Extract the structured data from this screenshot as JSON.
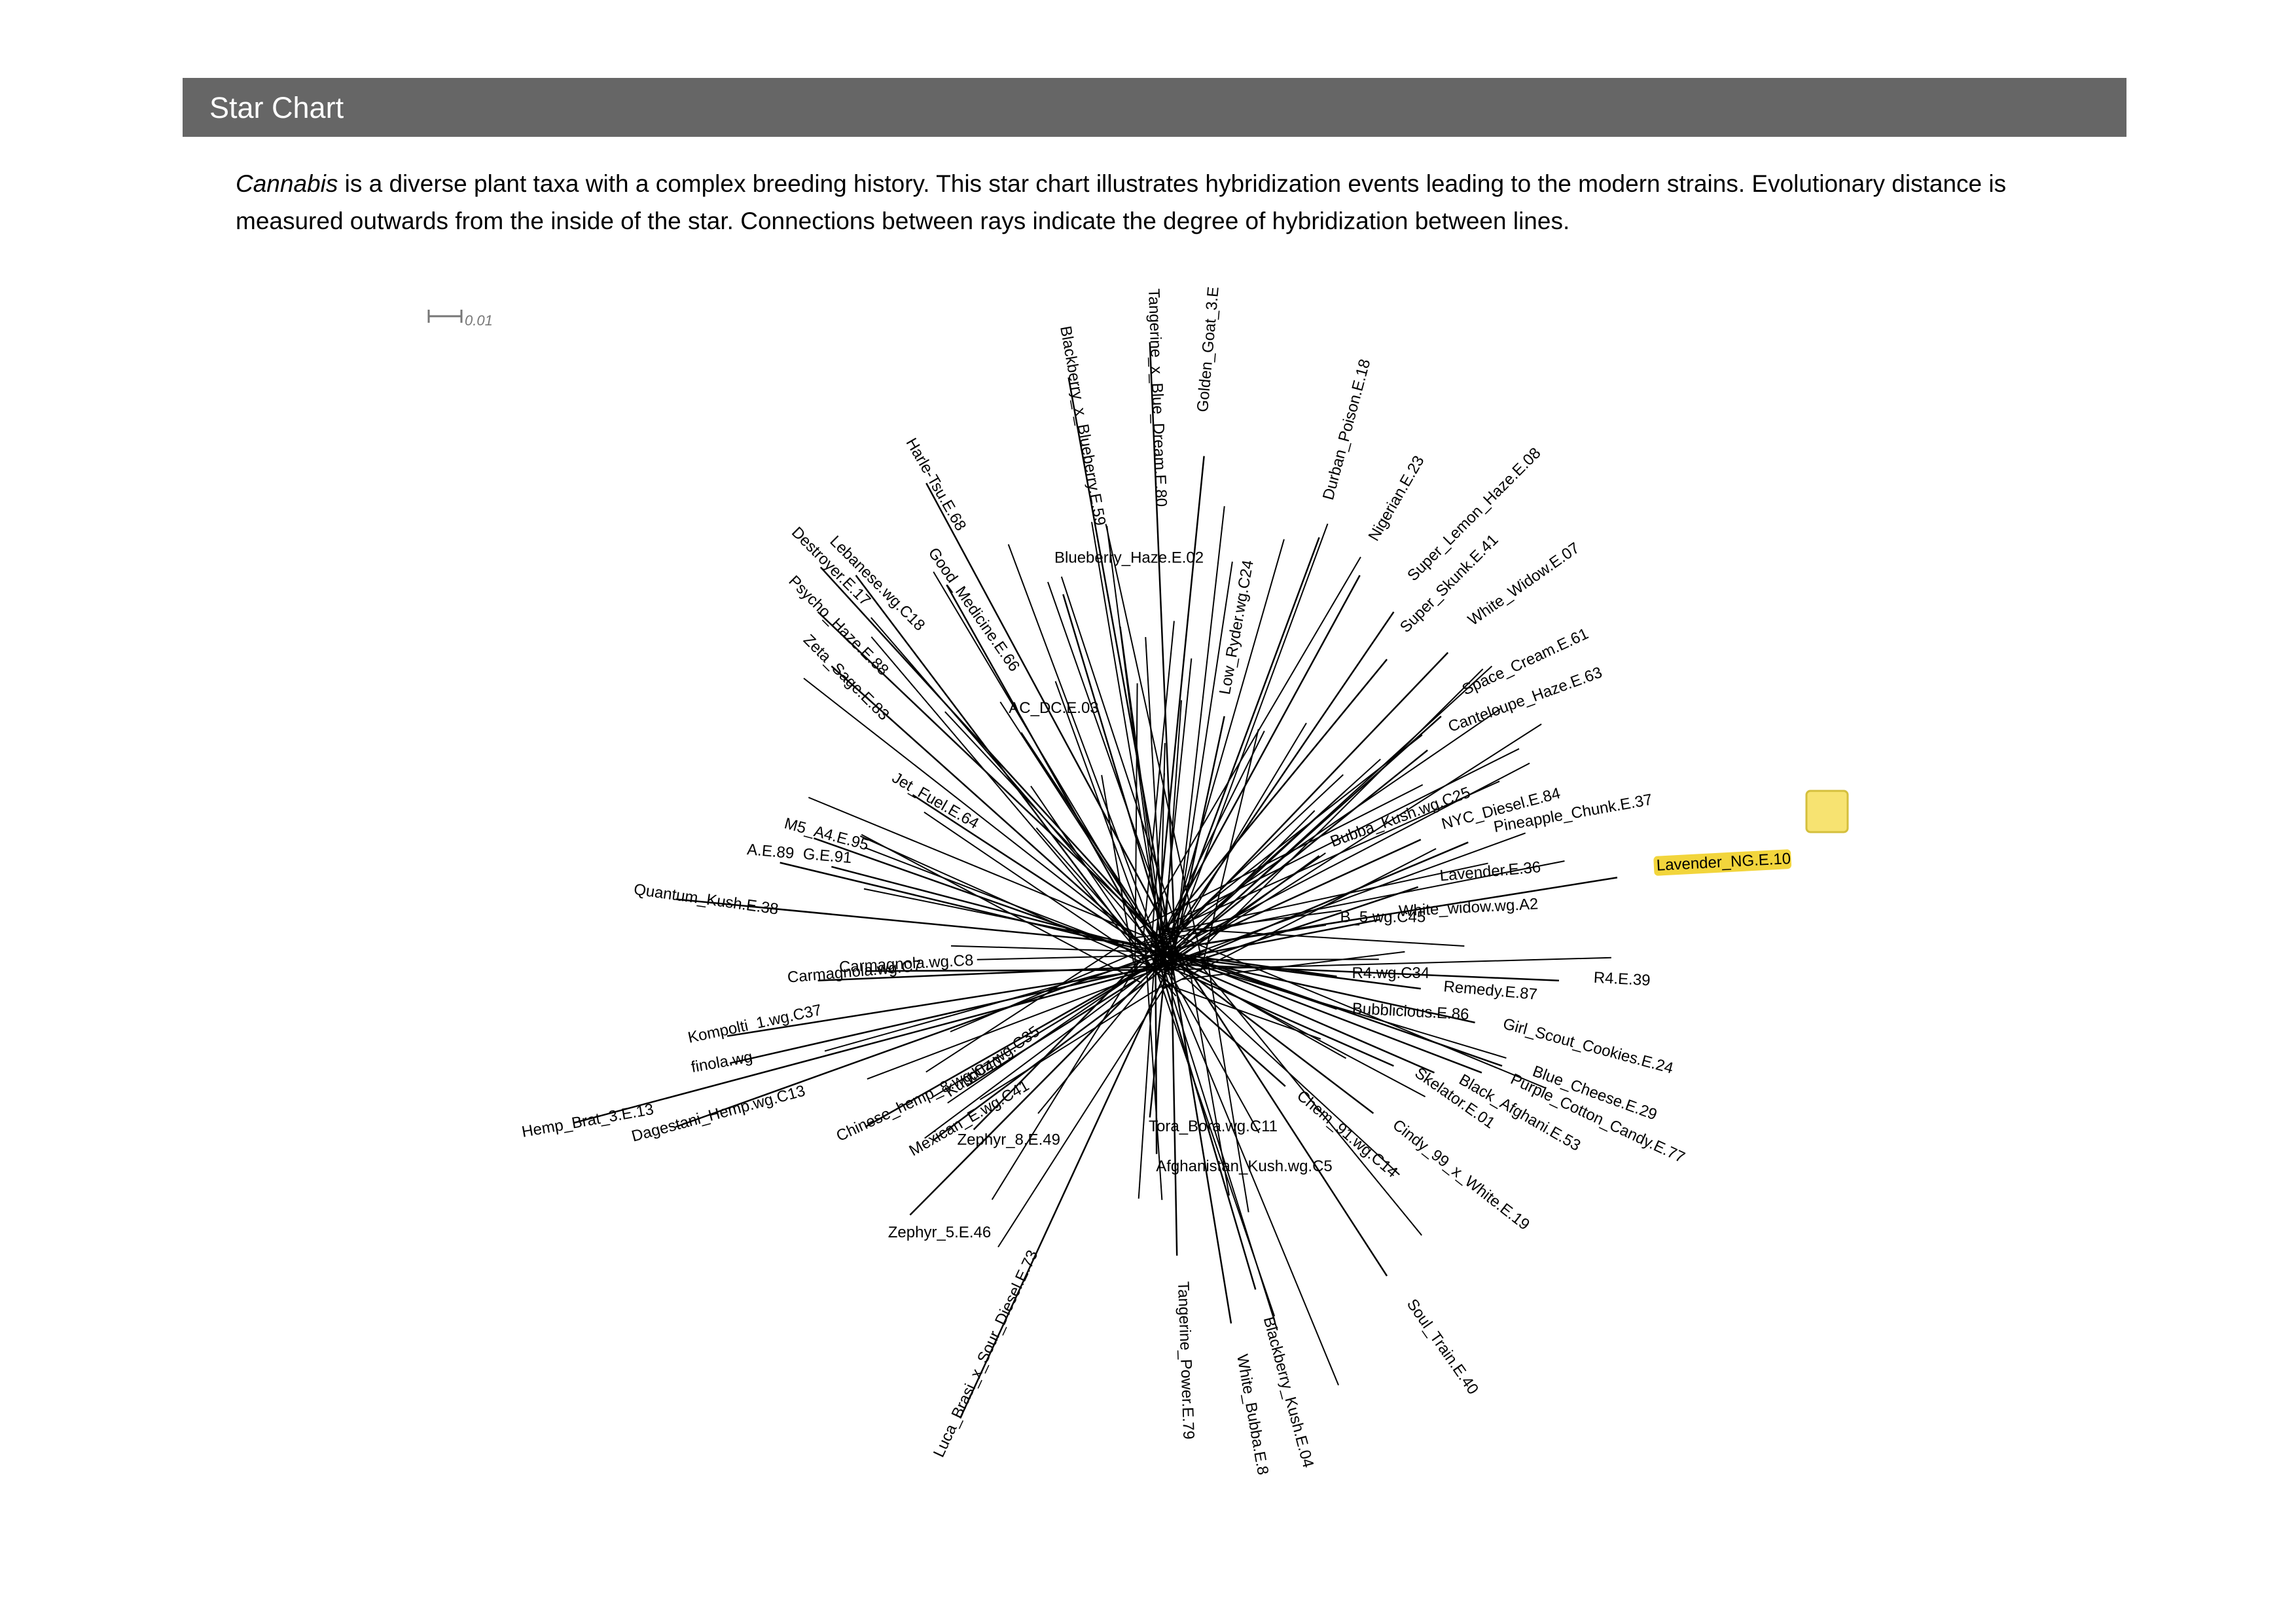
{
  "header": {
    "title": "Star Chart"
  },
  "description": {
    "emphasis": "Cannabis",
    "text": " is a diverse plant taxa with a complex breeding history. This star chart illustrates hybridization events leading to the modern strains. Evolutionary distance is measured outwards from the inside of the star. Connections between rays indicate the degree of hybridization between lines."
  },
  "scale_bar": {
    "label": "0.01"
  },
  "tree": {
    "leaves": [
      "Quantum_Kush.E.38",
      "A.E.89",
      "G.E.91",
      "M5_A4.E.95",
      "Zeta_Sage.E.83",
      "Psycho_Haze.E.88",
      "Destroyer.E.17",
      "Lebanese.wg.C18",
      "Harle-Tsu.E.68",
      "Good_Medicine.E.66",
      "Blackberry_x_Blueberry.E.59",
      "Tangerine_x_Blue_Dream.E.80",
      "Golden_Goat_3.E",
      "Durban_Poison.E.18",
      "Nigerian.E.23",
      "Super_Lemon_Haze.E.08",
      "Super_Skunk.E.41",
      "White_Widow.E.07",
      "Space_Cream.E.61",
      "Canteloupe_Haze.E.63",
      "NYC_Diesel.E.84",
      "Pineapple_Chunk.E.37",
      "Lavender.E.36",
      "White_widow.wg.A2",
      "Lavender_NG.E.10",
      "R4.E.39",
      "Remedy.E.87",
      "Girl_Scout_Cookies.E.24",
      "Blue_Cheese.E.29",
      "Purple_Cotton_Candy.E.77",
      "Black_Afghani.E.53",
      "Skelator.E.01",
      "Cindy_99_x_White.E.19",
      "Chem_91.wg.C14",
      "Soul_Train.E.40",
      "White_Bubba.E.8",
      "Blackberry_Kush.E.04",
      "Tangerine_Power.E.79",
      "Luca_Brasi_x_Sour_Diesel.E.73",
      "Zephyr_5.E.46",
      "Zephyr_8.E.49",
      "Mexican_E.wg.C41",
      "Kunduz.wg.C35",
      "Chinese_hemp_8.wg.C40",
      "Dagestani_Hemp.wg.C13",
      "Hemp_Brat_3.E.13",
      "finola.wg",
      "Kompolti_1.wg.C37",
      "Carmagnola.wg.C7",
      "Carmagnola.wg.C8",
      "Bubblicious.E.86",
      "R4.wg.C34",
      "B_5.wg.C45",
      "AC_DC.E.03",
      "Blueberry_Haze.E.02",
      "Low_Ryder.wg.C24",
      "Jet_Fuel.E.64",
      "Afghanistan_Kush.wg.C5",
      "Tora_Bora.wg.C11",
      "Bubba_Kush.wg.C25"
    ]
  }
}
